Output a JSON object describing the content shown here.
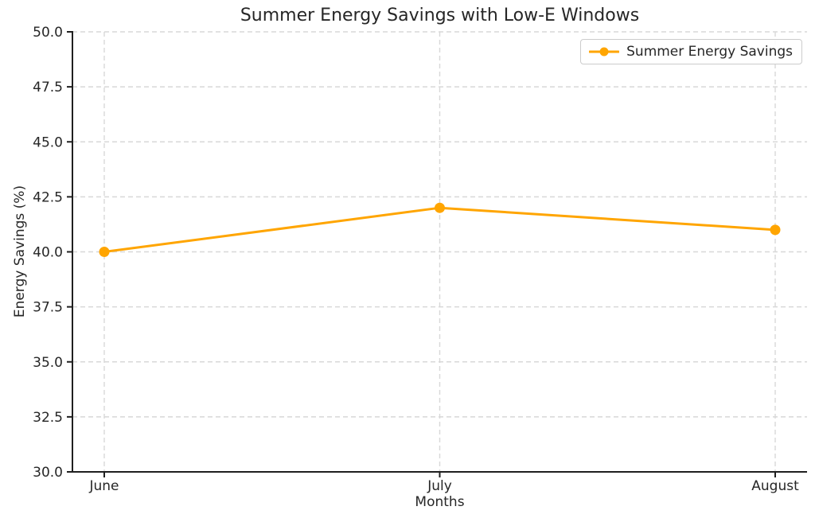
{
  "chart_data": {
    "type": "line",
    "title": "Summer Energy Savings with Low-E Windows",
    "xlabel": "Months",
    "ylabel": "Energy Savings (%)",
    "categories": [
      "June",
      "July",
      "August"
    ],
    "series": [
      {
        "name": "Summer Energy Savings",
        "values": [
          40,
          42,
          41
        ],
        "color": "#FFA500",
        "marker": "circle"
      }
    ],
    "ylim": [
      30,
      50
    ],
    "yticks": [
      30.0,
      32.5,
      35.0,
      37.5,
      40.0,
      42.5,
      45.0,
      47.5,
      50.0
    ],
    "ytick_labels": [
      "30.0",
      "32.5",
      "35.0",
      "37.5",
      "40.0",
      "42.5",
      "45.0",
      "47.5",
      "50.0"
    ],
    "grid": true,
    "grid_style": "dashed",
    "legend_position": "upper right"
  },
  "colors": {
    "line": "#FFA500",
    "grid": "#d8d8d8",
    "axis": "#1f1f1f",
    "text": "#262626",
    "legend_border": "#cccccc",
    "background": "#ffffff"
  }
}
